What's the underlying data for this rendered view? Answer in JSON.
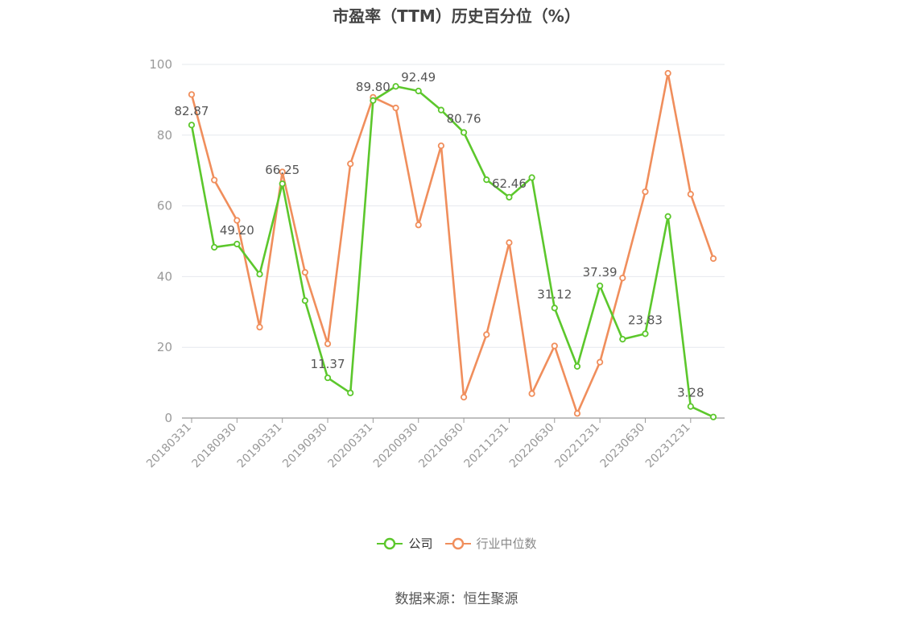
{
  "title": "市盈率（TTM）历史百分位（%）",
  "source": "数据来源：恒生聚源",
  "colors": {
    "company": "#5cc72c",
    "industry": "#f08e5c",
    "grid": "#e6e8ee",
    "axis": "#999999",
    "tick_text": "#999999",
    "label_text": "#555555"
  },
  "chart_data": {
    "type": "line",
    "title": "市盈率（TTM）历史百分位（%）",
    "xlabel": "",
    "ylabel": "",
    "ylim": [
      0,
      100
    ],
    "yticks": [
      0,
      20,
      40,
      60,
      80,
      100
    ],
    "grid": true,
    "legend_position": "bottom",
    "x": [
      "20180331",
      "20180630",
      "20180930",
      "20181231",
      "20190331",
      "20190630",
      "20190930",
      "20191231",
      "20200331",
      "20200630",
      "20200930",
      "20201231",
      "20210630",
      "20210930",
      "20211231",
      "20220331",
      "20220630",
      "20220930",
      "20221231",
      "20230331",
      "20230630",
      "20230930",
      "20231231",
      "20240331"
    ],
    "x_tick_labels": [
      "20180331",
      "20180930",
      "20190331",
      "20190930",
      "20200331",
      "20200930",
      "20210630",
      "20211231",
      "20220630",
      "20221231",
      "20230630",
      "20231231"
    ],
    "series": [
      {
        "name": "公司",
        "values": [
          82.87,
          48.3,
          49.2,
          40.7,
          66.25,
          33.2,
          11.37,
          7.1,
          89.8,
          93.8,
          92.49,
          87.1,
          80.76,
          67.4,
          62.46,
          68.0,
          31.12,
          14.6,
          37.39,
          22.3,
          23.83,
          57.0,
          3.28,
          0.3
        ],
        "labels": [
          {
            "index": 0,
            "text": "82.87"
          },
          {
            "index": 2,
            "text": "49.20"
          },
          {
            "index": 4,
            "text": "66.25"
          },
          {
            "index": 6,
            "text": "11.37"
          },
          {
            "index": 8,
            "text": "89.80"
          },
          {
            "index": 10,
            "text": "92.49"
          },
          {
            "index": 12,
            "text": "80.76"
          },
          {
            "index": 14,
            "text": "62.46"
          },
          {
            "index": 16,
            "text": "31.12"
          },
          {
            "index": 18,
            "text": "37.39"
          },
          {
            "index": 20,
            "text": "23.83"
          },
          {
            "index": 22,
            "text": "3.28"
          }
        ]
      },
      {
        "name": "行业中位数",
        "values": [
          91.5,
          67.3,
          55.9,
          25.7,
          69.6,
          41.2,
          21.0,
          71.9,
          90.7,
          87.7,
          54.6,
          77.0,
          5.9,
          23.6,
          49.6,
          6.9,
          20.4,
          1.3,
          15.8,
          39.6,
          64.0,
          97.5,
          63.3,
          45.1
        ]
      }
    ]
  }
}
